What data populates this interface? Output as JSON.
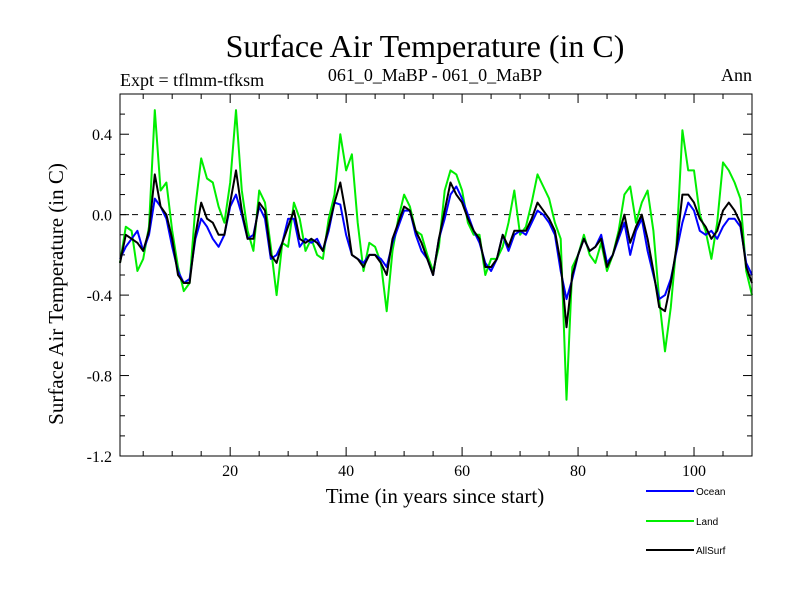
{
  "chart_data": {
    "type": "line",
    "title": "Surface Air Temperature (in C)",
    "subtitle_left": "Expt = tflmm-tfksm",
    "subtitle_center": "061_0_MaBP - 061_0_MaBP",
    "subtitle_right": "Ann",
    "xlabel": "Time (in years since start)",
    "ylabel": "Surface Air Temperature (in C)",
    "xlim": [
      1,
      110
    ],
    "ylim": [
      -1.2,
      0.6
    ],
    "xticks": [
      20,
      40,
      60,
      80,
      100
    ],
    "yticks": [
      -1.2,
      -0.8,
      -0.4,
      0.0,
      0.4
    ],
    "ytick_labels": [
      "-1.2",
      "-0.8",
      "-0.4",
      "0.0",
      "0.4"
    ],
    "reference_line": 0.0,
    "x": [
      1,
      2,
      3,
      4,
      5,
      6,
      7,
      8,
      9,
      10,
      11,
      12,
      13,
      14,
      15,
      16,
      17,
      18,
      19,
      20,
      21,
      22,
      23,
      24,
      25,
      26,
      27,
      28,
      29,
      30,
      31,
      32,
      33,
      34,
      35,
      36,
      37,
      38,
      39,
      40,
      41,
      42,
      43,
      44,
      45,
      46,
      47,
      48,
      49,
      50,
      51,
      52,
      53,
      54,
      55,
      56,
      57,
      58,
      59,
      60,
      61,
      62,
      63,
      64,
      65,
      66,
      67,
      68,
      69,
      70,
      71,
      72,
      73,
      74,
      75,
      76,
      77,
      78,
      79,
      80,
      81,
      82,
      83,
      84,
      85,
      86,
      87,
      88,
      89,
      90,
      91,
      92,
      93,
      94,
      95,
      96,
      97,
      98,
      99,
      100,
      101,
      102,
      103,
      104,
      105,
      106,
      107,
      108,
      109,
      110
    ],
    "series": [
      {
        "name": "Ocean",
        "color": "#0000ff",
        "values": [
          -0.22,
          -0.16,
          -0.12,
          -0.08,
          -0.18,
          -0.1,
          0.08,
          0.04,
          -0.02,
          -0.16,
          -0.28,
          -0.34,
          -0.32,
          -0.12,
          -0.02,
          -0.06,
          -0.12,
          -0.16,
          -0.1,
          0.04,
          0.1,
          0.0,
          -0.12,
          -0.1,
          0.04,
          -0.02,
          -0.22,
          -0.2,
          -0.14,
          -0.02,
          -0.02,
          -0.16,
          -0.12,
          -0.14,
          -0.12,
          -0.18,
          -0.08,
          0.06,
          0.05,
          -0.1,
          -0.2,
          -0.22,
          -0.24,
          -0.2,
          -0.2,
          -0.22,
          -0.26,
          -0.14,
          -0.06,
          0.02,
          0.02,
          -0.1,
          -0.18,
          -0.22,
          -0.3,
          -0.12,
          -0.02,
          0.1,
          0.14,
          0.08,
          0.0,
          -0.08,
          -0.14,
          -0.24,
          -0.28,
          -0.22,
          -0.1,
          -0.18,
          -0.1,
          -0.08,
          -0.1,
          -0.04,
          0.02,
          0.0,
          -0.04,
          -0.1,
          -0.28,
          -0.42,
          -0.32,
          -0.2,
          -0.12,
          -0.18,
          -0.16,
          -0.1,
          -0.24,
          -0.2,
          -0.12,
          -0.04,
          -0.2,
          -0.08,
          -0.02,
          -0.18,
          -0.3,
          -0.42,
          -0.4,
          -0.32,
          -0.18,
          -0.04,
          0.06,
          0.02,
          -0.08,
          -0.1,
          -0.08,
          -0.12,
          -0.06,
          -0.02,
          -0.02,
          -0.06,
          -0.24,
          -0.3
        ]
      },
      {
        "name": "Land",
        "color": "#00ee00",
        "values": [
          -0.24,
          -0.06,
          -0.08,
          -0.28,
          -0.22,
          -0.06,
          0.52,
          0.12,
          0.16,
          -0.08,
          -0.26,
          -0.38,
          -0.34,
          0.04,
          0.28,
          0.18,
          0.16,
          0.04,
          -0.04,
          0.16,
          0.52,
          0.12,
          -0.08,
          -0.18,
          0.12,
          0.06,
          -0.16,
          -0.4,
          -0.14,
          -0.16,
          0.06,
          -0.02,
          -0.18,
          -0.12,
          -0.2,
          -0.22,
          -0.02,
          0.1,
          0.4,
          0.22,
          0.3,
          -0.04,
          -0.28,
          -0.14,
          -0.16,
          -0.24,
          -0.48,
          -0.18,
          -0.02,
          0.1,
          0.04,
          -0.08,
          -0.1,
          -0.2,
          -0.28,
          -0.16,
          0.12,
          0.22,
          0.2,
          0.12,
          -0.04,
          -0.1,
          -0.1,
          -0.3,
          -0.22,
          -0.22,
          -0.16,
          -0.04,
          0.12,
          -0.1,
          -0.06,
          0.06,
          0.2,
          0.14,
          0.08,
          -0.04,
          -0.12,
          -0.92,
          -0.26,
          -0.2,
          -0.1,
          -0.2,
          -0.24,
          -0.14,
          -0.28,
          -0.2,
          -0.08,
          0.1,
          0.14,
          -0.04,
          0.06,
          0.12,
          -0.08,
          -0.42,
          -0.68,
          -0.46,
          -0.14,
          0.42,
          0.22,
          0.22,
          0.0,
          -0.08,
          -0.22,
          -0.04,
          0.26,
          0.22,
          0.16,
          0.08,
          -0.28,
          -0.4
        ]
      },
      {
        "name": "AllSurf",
        "color": "#000000",
        "values": [
          -0.24,
          -0.1,
          -0.12,
          -0.14,
          -0.18,
          -0.08,
          0.2,
          0.04,
          0.0,
          -0.12,
          -0.3,
          -0.34,
          -0.34,
          -0.1,
          0.06,
          -0.02,
          -0.04,
          -0.1,
          -0.1,
          0.06,
          0.22,
          0.02,
          -0.12,
          -0.12,
          0.06,
          0.02,
          -0.2,
          -0.24,
          -0.14,
          -0.06,
          0.02,
          -0.12,
          -0.14,
          -0.12,
          -0.14,
          -0.18,
          -0.06,
          0.06,
          0.16,
          0.0,
          -0.2,
          -0.22,
          -0.26,
          -0.2,
          -0.2,
          -0.24,
          -0.3,
          -0.12,
          -0.04,
          0.04,
          0.02,
          -0.08,
          -0.14,
          -0.22,
          -0.3,
          -0.12,
          0.02,
          0.16,
          0.1,
          0.06,
          -0.02,
          -0.08,
          -0.12,
          -0.26,
          -0.26,
          -0.22,
          -0.1,
          -0.16,
          -0.08,
          -0.08,
          -0.08,
          -0.02,
          0.06,
          0.02,
          -0.02,
          -0.08,
          -0.24,
          -0.56,
          -0.3,
          -0.2,
          -0.12,
          -0.18,
          -0.16,
          -0.12,
          -0.26,
          -0.2,
          -0.1,
          0.0,
          -0.14,
          -0.06,
          0.0,
          -0.12,
          -0.28,
          -0.46,
          -0.48,
          -0.34,
          -0.16,
          0.1,
          0.1,
          0.06,
          -0.02,
          -0.06,
          -0.12,
          -0.08,
          0.02,
          0.06,
          0.02,
          -0.04,
          -0.26,
          -0.34
        ]
      }
    ],
    "legend": [
      {
        "label": "Ocean",
        "color": "#0000ff"
      },
      {
        "label": "Land",
        "color": "#00ee00"
      },
      {
        "label": "AllSurf",
        "color": "#000000"
      }
    ],
    "legend_position": "bottom-right"
  }
}
